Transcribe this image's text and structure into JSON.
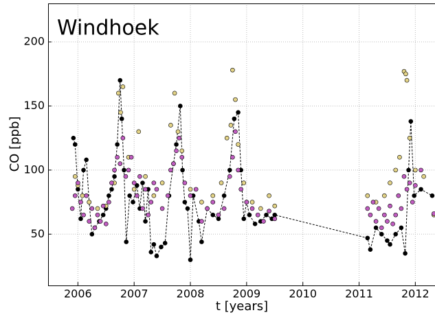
{
  "chart_data": {
    "type": "scatter",
    "title": "Windhoek",
    "x_label": "t [years]",
    "y_label": "CO [ppb]",
    "xlim": [
      2005.47,
      2012.35
    ],
    "ylim": [
      10,
      230
    ],
    "xticks": [
      2006,
      2007,
      2008,
      2009,
      2010,
      2011,
      2012
    ],
    "yticks": [
      50,
      100,
      150,
      200
    ],
    "grid": true,
    "series": [
      {
        "color": "#000000",
        "linestyle": "dashed",
        "x": [
          2005.92,
          2005.95,
          2006.0,
          2006.05,
          2006.1,
          2006.15,
          2006.2,
          2006.25,
          2006.3,
          2006.38,
          2006.45,
          2006.5,
          2006.55,
          2006.6,
          2006.65,
          2006.7,
          2006.75,
          2006.78,
          2006.82,
          2006.86,
          2006.92,
          2006.98,
          2007.05,
          2007.1,
          2007.15,
          2007.2,
          2007.25,
          2007.3,
          2007.35,
          2007.4,
          2007.48,
          2007.55,
          2007.62,
          2007.7,
          2007.75,
          2007.82,
          2007.86,
          2007.9,
          2007.95,
          2008.0,
          2008.05,
          2008.15,
          2008.2,
          2008.3,
          2008.4,
          2008.5,
          2008.6,
          2008.7,
          2008.78,
          2008.85,
          2008.9,
          2008.95,
          2009.0,
          2009.05,
          2009.15,
          2009.25,
          2009.35,
          2009.45,
          2009.5,
          2011.15,
          2011.2,
          2011.3,
          2011.4,
          2011.5,
          2011.55,
          2011.65,
          2011.75,
          2011.82,
          2011.88,
          2011.92,
          2011.98,
          2012.1,
          2012.3
        ],
        "values": [
          125,
          120,
          85,
          62,
          100,
          108,
          75,
          50,
          55,
          60,
          65,
          70,
          80,
          85,
          95,
          120,
          170,
          140,
          100,
          44,
          80,
          75,
          88,
          70,
          90,
          60,
          85,
          36,
          42,
          33,
          40,
          43,
          80,
          105,
          120,
          150,
          100,
          75,
          70,
          30,
          80,
          60,
          44,
          70,
          65,
          62,
          80,
          100,
          140,
          145,
          100,
          62,
          75,
          65,
          58,
          60,
          65,
          62,
          65,
          47,
          38,
          55,
          50,
          45,
          42,
          50,
          55,
          35,
          100,
          138,
          80,
          85,
          80
        ]
      },
      {
        "color": "#e3d387",
        "x": [
          2005.95,
          2006.0,
          2006.08,
          2006.2,
          2006.35,
          2006.5,
          2006.65,
          2006.72,
          2006.76,
          2006.8,
          2006.9,
          2007.0,
          2007.08,
          2007.2,
          2007.35,
          2007.5,
          2007.65,
          2007.72,
          2007.78,
          2007.85,
          2008.0,
          2008.2,
          2008.4,
          2008.55,
          2008.65,
          2008.72,
          2008.75,
          2008.8,
          2008.85,
          2008.95,
          2009.1,
          2009.25,
          2009.4,
          2009.5,
          2011.15,
          2011.3,
          2011.45,
          2011.55,
          2011.65,
          2011.72,
          2011.8,
          2011.83,
          2011.85,
          2011.9,
          2012.0,
          2012.15,
          2012.33
        ],
        "values": [
          95,
          88,
          80,
          75,
          70,
          72,
          90,
          160,
          145,
          165,
          110,
          85,
          130,
          95,
          80,
          90,
          135,
          160,
          130,
          115,
          85,
          75,
          80,
          90,
          125,
          135,
          178,
          155,
          120,
          90,
          75,
          70,
          80,
          72,
          80,
          75,
          80,
          90,
          100,
          110,
          177,
          175,
          170,
          125,
          100,
          95,
          65
        ]
      },
      {
        "color": "#c05cc0",
        "x": [
          2005.9,
          2005.95,
          2006.0,
          2006.05,
          2006.1,
          2006.15,
          2006.2,
          2006.25,
          2006.3,
          2006.35,
          2006.4,
          2006.45,
          2006.5,
          2006.55,
          2006.6,
          2006.65,
          2006.7,
          2006.75,
          2006.8,
          2006.85,
          2006.9,
          2006.95,
          2007.0,
          2007.05,
          2007.1,
          2007.15,
          2007.2,
          2007.25,
          2007.3,
          2007.35,
          2007.4,
          2007.5,
          2007.6,
          2007.65,
          2007.7,
          2007.75,
          2007.8,
          2007.85,
          2007.9,
          2008.0,
          2008.1,
          2008.2,
          2008.3,
          2008.4,
          2008.5,
          2008.6,
          2008.7,
          2008.75,
          2008.8,
          2008.85,
          2008.9,
          2009.0,
          2009.1,
          2009.2,
          2009.3,
          2009.4,
          2009.5,
          2011.15,
          2011.2,
          2011.25,
          2011.3,
          2011.35,
          2011.4,
          2011.45,
          2011.5,
          2011.55,
          2011.6,
          2011.65,
          2011.7,
          2011.75,
          2011.8,
          2011.85,
          2011.9,
          2011.95,
          2012.0,
          2012.1,
          2012.33
        ],
        "values": [
          70,
          80,
          90,
          75,
          65,
          80,
          60,
          70,
          55,
          65,
          60,
          72,
          58,
          75,
          90,
          100,
          110,
          105,
          125,
          95,
          100,
          110,
          90,
          80,
          95,
          70,
          85,
          65,
          75,
          90,
          85,
          70,
          80,
          100,
          105,
          115,
          125,
          110,
          90,
          80,
          85,
          60,
          70,
          75,
          65,
          70,
          95,
          110,
          130,
          100,
          85,
          75,
          70,
          65,
          60,
          68,
          62,
          70,
          65,
          75,
          60,
          70,
          55,
          65,
          60,
          72,
          58,
          65,
          80,
          70,
          95,
          85,
          90,
          75,
          88,
          100,
          66
        ]
      }
    ]
  }
}
